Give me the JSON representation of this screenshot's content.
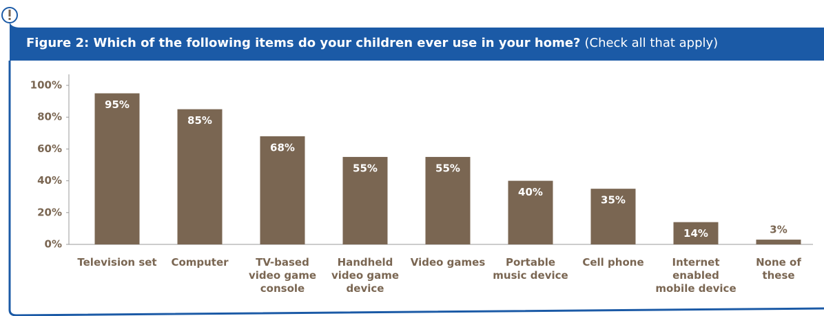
{
  "chart_data": {
    "type": "bar",
    "title": "Figure 2: Which of the following items do your children ever use in your home?",
    "subtitle": "(Check all that apply)",
    "categories": [
      "Television set",
      "Computer",
      "TV-based video game console",
      "Handheld video game device",
      "Video games",
      "Portable music device",
      "Cell phone",
      "Internet enabled mobile device",
      "None of these"
    ],
    "values": [
      95,
      85,
      68,
      55,
      55,
      40,
      35,
      14,
      3
    ],
    "value_labels": [
      "95%",
      "85%",
      "68%",
      "55%",
      "55%",
      "40%",
      "35%",
      "14%",
      "3%"
    ],
    "color": "#7a6652",
    "ylim": [
      0,
      100
    ],
    "yticks": [
      {
        "value": 0,
        "label": "0%"
      },
      {
        "value": 20,
        "label": "20%"
      },
      {
        "value": 40,
        "label": "40%"
      },
      {
        "value": 60,
        "label": "60%"
      },
      {
        "value": 80,
        "label": "80%"
      },
      {
        "value": 100,
        "label": "100%"
      }
    ]
  }
}
